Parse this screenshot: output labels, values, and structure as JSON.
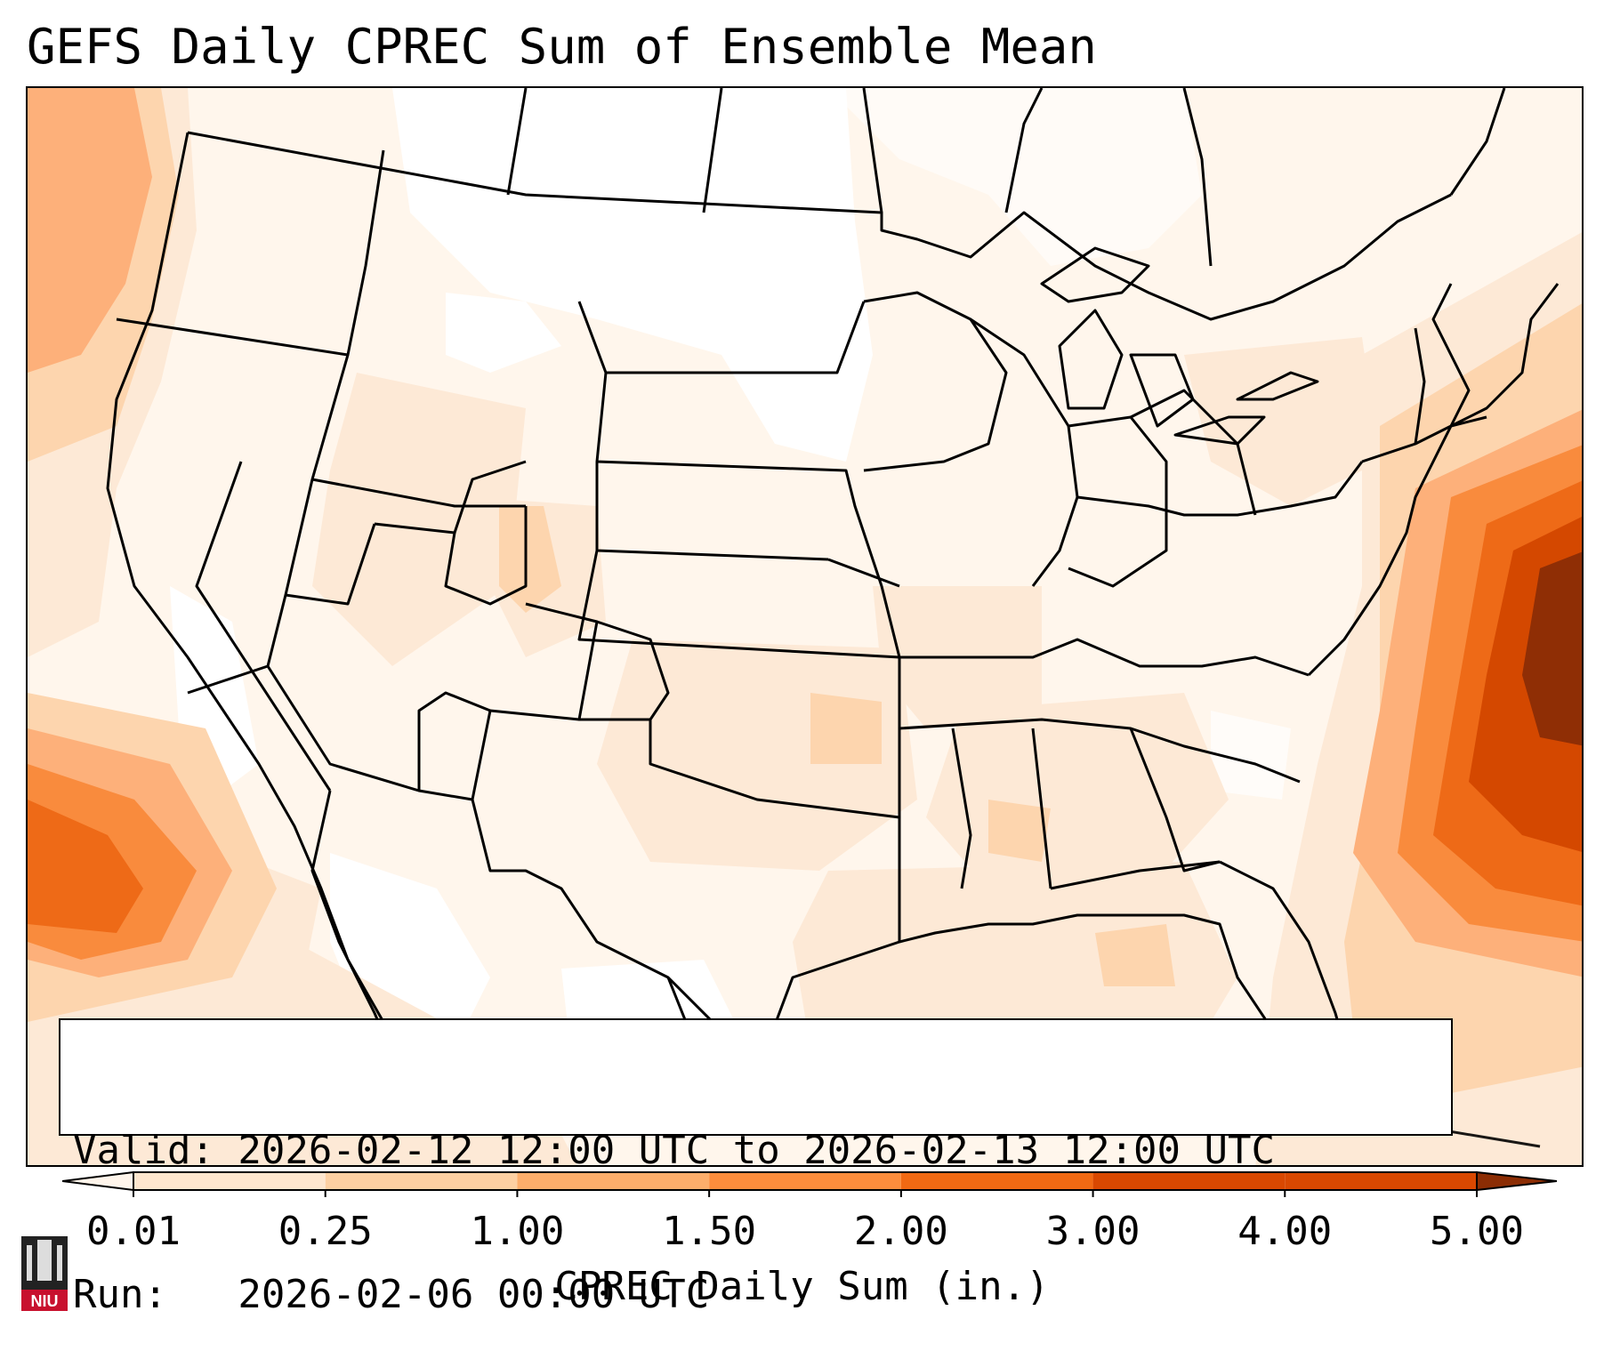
{
  "title": "GEFS Daily CPREC Sum of Ensemble Mean",
  "info": {
    "valid_line": "Valid: 2026-02-12 12:00 UTC to 2026-02-13 12:00 UTC",
    "run_line": "Run:   2026-02-06 00:00 UTC"
  },
  "colorbar": {
    "label": "CPREC Daily Sum (in.)",
    "ticks": [
      "0.01",
      "0.25",
      "1.00",
      "1.50",
      "2.00",
      "3.00",
      "4.00",
      "5.00"
    ],
    "colors": [
      "#fff5eb",
      "#fee6ce",
      "#fdd0a2",
      "#fdae6b",
      "#fd8d3c",
      "#f16913",
      "#d94801",
      "#8c2d04"
    ],
    "extend": "both"
  },
  "logo": {
    "text": "NIU",
    "color": "#c8102e"
  },
  "map": {
    "projection": "Lambert Conformal",
    "region": "CONUS",
    "colors": {
      "none": "#ffffff",
      "trace": "#fff6ec",
      "light": "#fde9d6",
      "moderate": "#fdd5ae",
      "heavy": "#fdb07a",
      "heavier": "#f98b3d",
      "very_heavy": "#ee6a17",
      "extreme": "#d44800",
      "max": "#8f2e05"
    }
  }
}
